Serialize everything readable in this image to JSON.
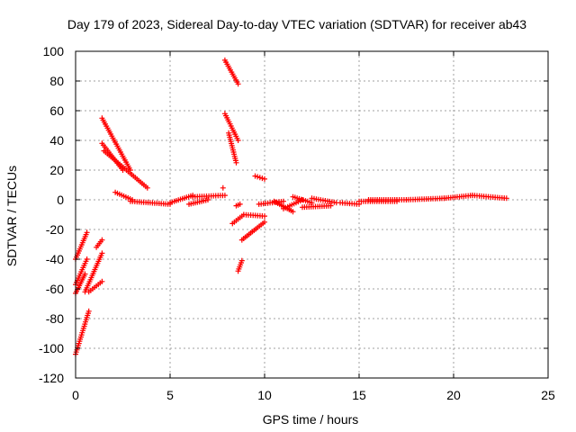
{
  "chart_data": {
    "type": "scatter",
    "title": "Day 179 of 2023, Sidereal Day-to-day VTEC variation (SDTVAR) for receiver ab43",
    "xlabel": "GPS time / hours",
    "ylabel": "SDTVAR / TECUs",
    "xlim": [
      0,
      25
    ],
    "ylim": [
      -120,
      100
    ],
    "xticks": [
      0,
      5,
      10,
      15,
      20,
      25
    ],
    "yticks": [
      -120,
      -100,
      -80,
      -60,
      -40,
      -20,
      0,
      20,
      40,
      60,
      80,
      100
    ],
    "grid": true,
    "marker": "+",
    "color": "#ff0000",
    "segments": [
      {
        "x0": 0.0,
        "y0": -104,
        "x1": 0.7,
        "y1": -75
      },
      {
        "x0": 0.0,
        "y0": -40,
        "x1": 0.6,
        "y1": -22
      },
      {
        "x0": 0.0,
        "y0": -57,
        "x1": 0.6,
        "y1": -40
      },
      {
        "x0": 0.0,
        "y0": -63,
        "x1": 0.5,
        "y1": -50
      },
      {
        "x0": 0.5,
        "y0": -62,
        "x1": 1.4,
        "y1": -36
      },
      {
        "x0": 0.7,
        "y0": -62,
        "x1": 1.4,
        "y1": -55
      },
      {
        "x0": 1.1,
        "y0": -32,
        "x1": 1.4,
        "y1": -27
      },
      {
        "x0": 1.4,
        "y0": 55,
        "x1": 2.9,
        "y1": 20
      },
      {
        "x0": 1.4,
        "y0": 38,
        "x1": 2.5,
        "y1": 20
      },
      {
        "x0": 1.5,
        "y0": 33,
        "x1": 3.8,
        "y1": 8
      },
      {
        "x0": 2.1,
        "y0": 5,
        "x1": 3.0,
        "y1": 0
      },
      {
        "x0": 2.9,
        "y0": -1,
        "x1": 5.0,
        "y1": -3
      },
      {
        "x0": 5.0,
        "y0": -2,
        "x1": 6.2,
        "y1": 3
      },
      {
        "x0": 6.2,
        "y0": 2,
        "x1": 7.9,
        "y1": 3
      },
      {
        "x0": 6.0,
        "y0": -3,
        "x1": 7.0,
        "y1": 0
      },
      {
        "x0": 7.9,
        "y0": 94,
        "x1": 8.6,
        "y1": 78
      },
      {
        "x0": 7.9,
        "y0": 58,
        "x1": 8.6,
        "y1": 40
      },
      {
        "x0": 8.1,
        "y0": 45,
        "x1": 8.5,
        "y1": 25
      },
      {
        "x0": 7.8,
        "y0": 8,
        "x1": 7.8,
        "y1": 8
      },
      {
        "x0": 8.8,
        "y0": -27,
        "x1": 10.0,
        "y1": -15
      },
      {
        "x0": 8.3,
        "y0": -16,
        "x1": 8.9,
        "y1": -10
      },
      {
        "x0": 8.9,
        "y0": -10,
        "x1": 10.0,
        "y1": -11
      },
      {
        "x0": 8.5,
        "y0": -4,
        "x1": 8.7,
        "y1": -3
      },
      {
        "x0": 8.6,
        "y0": -48,
        "x1": 8.8,
        "y1": -41
      },
      {
        "x0": 9.5,
        "y0": 16,
        "x1": 10.0,
        "y1": 14
      },
      {
        "x0": 9.7,
        "y0": -3,
        "x1": 11.0,
        "y1": -1
      },
      {
        "x0": 10.5,
        "y0": -1,
        "x1": 11.5,
        "y1": -8
      },
      {
        "x0": 11.0,
        "y0": -6,
        "x1": 12.0,
        "y1": 0
      },
      {
        "x0": 11.5,
        "y0": 2,
        "x1": 12.5,
        "y1": -2
      },
      {
        "x0": 12.0,
        "y0": -5,
        "x1": 13.5,
        "y1": -4
      },
      {
        "x0": 12.5,
        "y0": 1,
        "x1": 13.8,
        "y1": -2
      },
      {
        "x0": 14.0,
        "y0": -2,
        "x1": 15.0,
        "y1": -3
      },
      {
        "x0": 15.0,
        "y0": -1,
        "x1": 17.0,
        "y1": -1
      },
      {
        "x0": 15.5,
        "y0": 0,
        "x1": 17.0,
        "y1": 0
      },
      {
        "x0": 17.0,
        "y0": 0,
        "x1": 17.5,
        "y1": 0
      },
      {
        "x0": 17.5,
        "y0": 0,
        "x1": 19.5,
        "y1": 1
      },
      {
        "x0": 19.5,
        "y0": 1,
        "x1": 21.0,
        "y1": 3
      },
      {
        "x0": 21.0,
        "y0": 3,
        "x1": 22.8,
        "y1": 1
      }
    ]
  }
}
